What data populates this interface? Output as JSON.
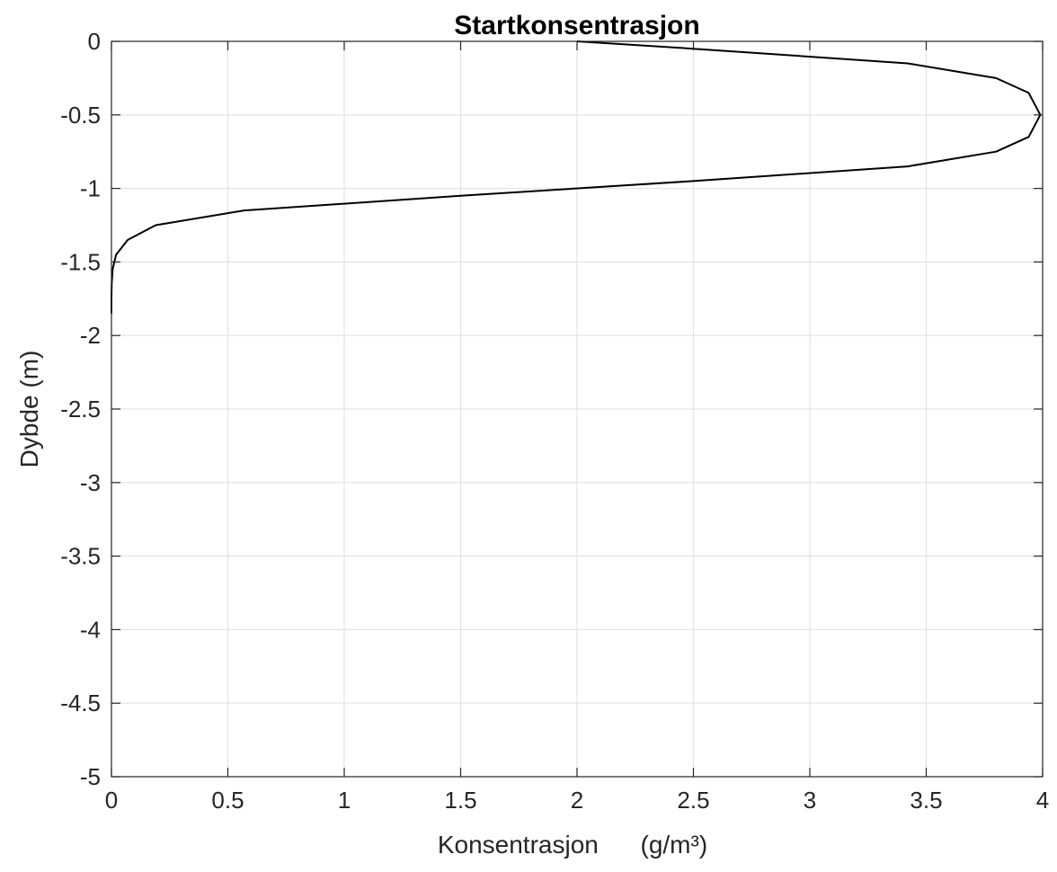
{
  "chart_data": {
    "type": "line",
    "title": "Startkonsentrasjon",
    "xlabel": "Konsentrasjon      (g/m³)",
    "ylabel": "Dybde (m)",
    "xlim": [
      0,
      4
    ],
    "ylim": [
      -5,
      0
    ],
    "grid": true,
    "xticks": [
      {
        "value": 0,
        "label": "0"
      },
      {
        "value": 0.5,
        "label": "0.5"
      },
      {
        "value": 1,
        "label": "1"
      },
      {
        "value": 1.5,
        "label": "1.5"
      },
      {
        "value": 2,
        "label": "2"
      },
      {
        "value": 2.5,
        "label": "2.5"
      },
      {
        "value": 3,
        "label": "3"
      },
      {
        "value": 3.5,
        "label": "3.5"
      },
      {
        "value": 4,
        "label": "4"
      }
    ],
    "yticks": [
      {
        "value": 0,
        "label": "0"
      },
      {
        "value": -0.5,
        "label": "-0.5"
      },
      {
        "value": -1,
        "label": "-1"
      },
      {
        "value": -1.5,
        "label": "-1.5"
      },
      {
        "value": -2,
        "label": "-2"
      },
      {
        "value": -2.5,
        "label": "-2.5"
      },
      {
        "value": -3,
        "label": "-3"
      },
      {
        "value": -3.5,
        "label": "-3.5"
      },
      {
        "value": -4,
        "label": "-4"
      },
      {
        "value": -4.5,
        "label": "-4.5"
      },
      {
        "value": -5,
        "label": "-5"
      }
    ],
    "series": [
      {
        "color": "#000000",
        "x": [
          2.0,
          2.5,
          3.42,
          3.8,
          3.94,
          3.99,
          3.94,
          3.8,
          3.42,
          2.5,
          1.5,
          0.57,
          0.19,
          0.07,
          0.02,
          0.005,
          0.001,
          0.0,
          0.0
        ],
        "y": [
          0.0,
          -0.05,
          -0.15,
          -0.25,
          -0.35,
          -0.5,
          -0.65,
          -0.75,
          -0.85,
          -0.95,
          -1.05,
          -1.15,
          -1.25,
          -1.35,
          -1.45,
          -1.55,
          -1.65,
          -1.75,
          -1.85
        ]
      }
    ]
  }
}
